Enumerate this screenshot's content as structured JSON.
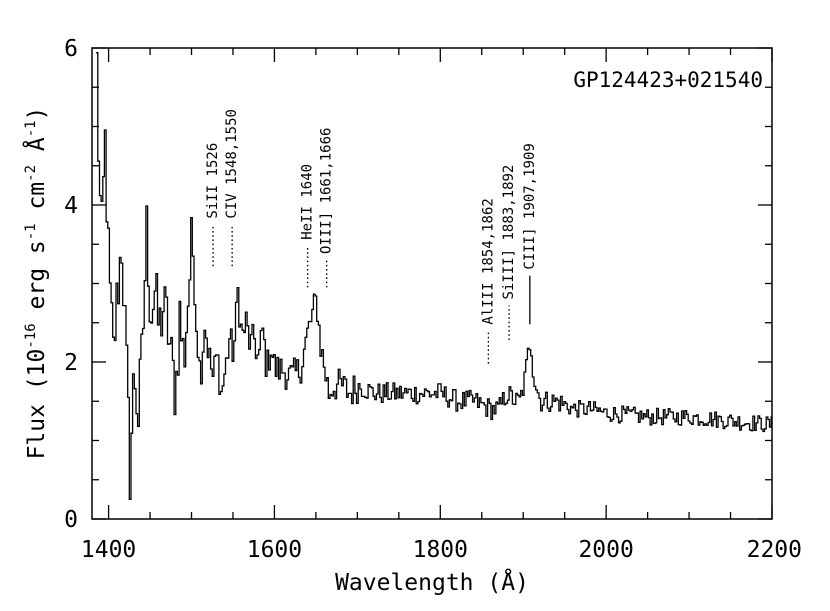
{
  "chart_data": {
    "type": "line",
    "object_label": "GP124423+021540",
    "xlabel": "Wavelength (Å)",
    "ylabel": "Flux (10-16 erg s-1 cm-2 Å-1)",
    "ylabel_parts": {
      "pre": "Flux (10",
      "exp1": "-16",
      "mid1": " erg s",
      "exp2": "-1",
      "mid2": " cm",
      "exp3": "-2",
      "mid3": " Å",
      "exp4": "-1",
      "post": ")"
    },
    "xlim": [
      1380,
      2200
    ],
    "ylim": [
      0,
      6
    ],
    "x_major_ticks": [
      1400,
      1600,
      1800,
      2000,
      2200
    ],
    "x_tick_labels": [
      "1400",
      "1600",
      "1800",
      "2000",
      "2200"
    ],
    "y_major_ticks": [
      0,
      2,
      4,
      6
    ],
    "y_tick_labels": [
      "0",
      "2",
      "4",
      "6"
    ],
    "x_minor_step": 50,
    "y_minor_step": 0.5,
    "spectrum_anchors": {
      "x": [
        1385,
        1388,
        1391,
        1395,
        1400,
        1405,
        1410,
        1415,
        1420,
        1425,
        1430,
        1435,
        1440,
        1445,
        1450,
        1455,
        1460,
        1465,
        1470,
        1475,
        1480,
        1485,
        1490,
        1495,
        1500,
        1505,
        1510,
        1515,
        1520,
        1525,
        1530,
        1535,
        1540,
        1545,
        1550,
        1555,
        1560,
        1565,
        1570,
        1575,
        1580,
        1585,
        1590,
        1595,
        1600,
        1610,
        1620,
        1630,
        1640,
        1645,
        1650,
        1655,
        1660,
        1665,
        1670,
        1680,
        1690,
        1700,
        1720,
        1740,
        1760,
        1780,
        1800,
        1820,
        1840,
        1860,
        1870,
        1880,
        1890,
        1895,
        1900,
        1905,
        1908,
        1912,
        1920,
        1940,
        1960,
        1980,
        2000,
        2050,
        2100,
        2150,
        2200
      ],
      "y": [
        5.8,
        4.2,
        3.6,
        4.8,
        3.0,
        2.1,
        2.9,
        3.5,
        2.2,
        0.6,
        1.9,
        1.3,
        2.2,
        3.7,
        2.6,
        2.9,
        2.4,
        2.7,
        2.5,
        2.0,
        1.6,
        2.6,
        2.0,
        2.8,
        3.6,
        2.5,
        1.8,
        2.5,
        2.1,
        1.8,
        2.1,
        1.6,
        1.9,
        2.3,
        2.1,
        2.9,
        2.3,
        2.5,
        2.2,
        2.3,
        2.0,
        2.4,
        1.9,
        2.2,
        1.9,
        1.9,
        1.8,
        1.9,
        2.4,
        2.6,
        2.8,
        2.2,
        1.9,
        1.6,
        1.7,
        1.7,
        1.6,
        1.7,
        1.6,
        1.6,
        1.6,
        1.6,
        1.6,
        1.5,
        1.5,
        1.4,
        1.4,
        1.6,
        1.5,
        1.5,
        1.7,
        2.1,
        2.3,
        1.8,
        1.5,
        1.5,
        1.4,
        1.4,
        1.35,
        1.3,
        1.3,
        1.25,
        1.2
      ]
    },
    "spectral_lines": [
      {
        "label": "SiII 1526",
        "wavelength": 1526,
        "style": "dotted",
        "y_bottom": 3.22,
        "y_top": 3.75
      },
      {
        "label": "CIV 1548,1550",
        "wavelength": 1549,
        "style": "dotted",
        "y_bottom": 3.22,
        "y_top": 3.75
      },
      {
        "label": "HeII 1640",
        "wavelength": 1640,
        "style": "dotted",
        "y_bottom": 2.95,
        "y_top": 3.48
      },
      {
        "label": "OIII] 1661,1666",
        "wavelength": 1663,
        "style": "dotted",
        "y_bottom": 2.95,
        "y_top": 3.3
      },
      {
        "label": "AlIII 1854,1862",
        "wavelength": 1858,
        "style": "dotted",
        "y_bottom": 1.98,
        "y_top": 2.4
      },
      {
        "label": "SiIII] 1883,1892",
        "wavelength": 1883,
        "style": "dotted",
        "y_bottom": 2.28,
        "y_top": 2.72
      },
      {
        "label": "CIII] 1907,1909",
        "wavelength": 1908,
        "style": "solid",
        "y_bottom": 2.48,
        "y_top": 3.1
      }
    ]
  }
}
